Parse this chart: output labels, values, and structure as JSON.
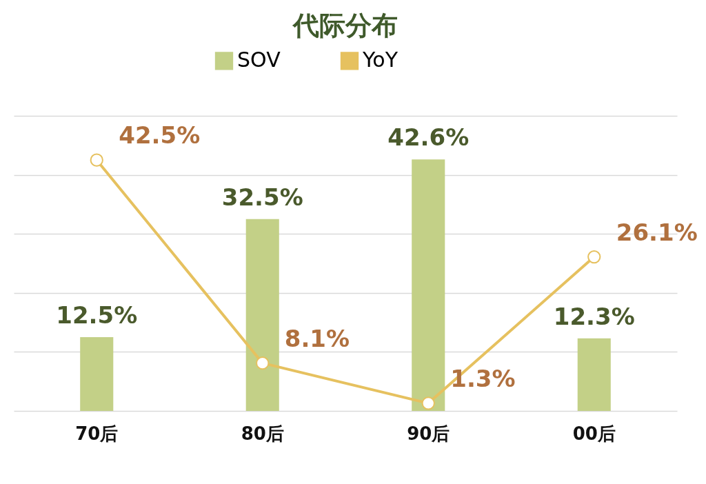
{
  "chart_data": {
    "type": "bar",
    "title": "代际分布",
    "categories": [
      "70后",
      "80后",
      "90后",
      "00后"
    ],
    "series": [
      {
        "name": "SOV",
        "color": "#c3d087",
        "values": [
          12.5,
          32.5,
          42.6,
          12.3
        ],
        "value_labels": [
          "12.5%",
          "32.5%",
          "42.6%",
          "12.3%"
        ]
      },
      {
        "name": "YoY",
        "type": "line",
        "color": "#e6c15f",
        "values": [
          42.5,
          8.1,
          1.3,
          26.1
        ],
        "value_labels": [
          "42.5%",
          "8.1%",
          "1.3%",
          "26.1%"
        ]
      }
    ],
    "ylim": [
      0,
      50
    ],
    "yticks": [
      0,
      10,
      20,
      30,
      40,
      50
    ],
    "grid": "y",
    "tick_labels": "x",
    "legend": "top",
    "marker": "circle"
  }
}
